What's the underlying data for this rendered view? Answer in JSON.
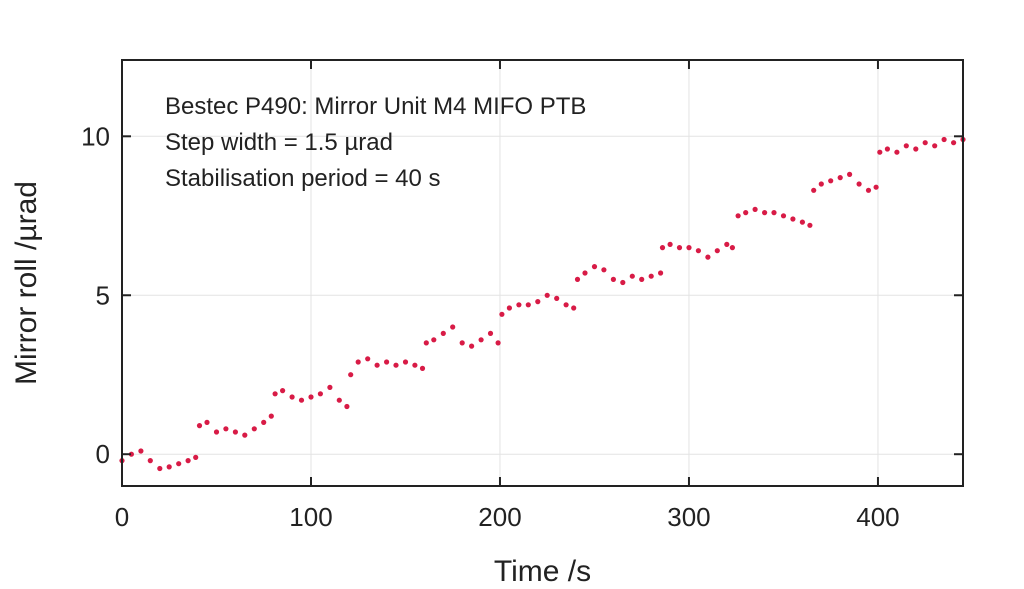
{
  "chart_data": {
    "type": "scatter",
    "title": "",
    "xlabel": "Time /s",
    "ylabel": "Mirror roll /µrad",
    "xlim": [
      0,
      445
    ],
    "ylim": [
      -1,
      12.4
    ],
    "x_ticks": [
      0,
      100,
      200,
      300,
      400
    ],
    "y_ticks": [
      0,
      5,
      10
    ],
    "grid": true,
    "marker_color": "#d81b46",
    "annotations": [
      "Bestec P490: Mirror Unit M4 MIFO PTB",
      "Step width = 1.5 µrad",
      "Stabilisation period = 40 s"
    ],
    "series": [
      {
        "x": [
          0,
          5,
          10,
          15,
          20,
          25,
          30,
          35,
          39,
          41,
          45,
          50,
          55,
          60,
          65,
          70,
          75,
          79,
          81,
          85,
          90,
          95,
          100,
          105,
          110,
          115,
          119,
          121,
          125,
          130,
          135,
          140,
          145,
          150,
          155,
          159,
          161,
          165,
          170,
          175,
          180,
          185,
          190,
          195,
          199,
          201,
          205,
          210,
          215,
          220,
          225,
          230,
          235,
          239,
          241,
          245,
          250,
          255,
          260,
          265,
          270,
          275,
          280,
          285,
          286,
          290,
          295,
          300,
          305,
          310,
          315,
          320,
          323,
          326,
          330,
          335,
          340,
          345,
          350,
          355,
          360,
          364,
          366,
          370,
          375,
          380,
          385,
          390,
          395,
          399,
          401,
          405,
          410,
          415,
          420,
          425,
          430,
          435,
          440,
          445
        ],
        "y": [
          -0.2,
          0.0,
          0.1,
          -0.2,
          -0.45,
          -0.4,
          -0.3,
          -0.2,
          -0.1,
          0.9,
          1.0,
          0.7,
          0.8,
          0.7,
          0.6,
          0.8,
          1.0,
          1.2,
          1.9,
          2.0,
          1.8,
          1.7,
          1.8,
          1.9,
          2.1,
          1.7,
          1.5,
          2.5,
          2.9,
          3.0,
          2.8,
          2.9,
          2.8,
          2.9,
          2.8,
          2.7,
          3.5,
          3.6,
          3.8,
          4.0,
          3.5,
          3.4,
          3.6,
          3.8,
          3.5,
          4.4,
          4.6,
          4.7,
          4.7,
          4.8,
          5.0,
          4.9,
          4.7,
          4.6,
          5.5,
          5.7,
          5.9,
          5.8,
          5.5,
          5.4,
          5.6,
          5.5,
          5.6,
          5.7,
          6.5,
          6.6,
          6.5,
          6.5,
          6.4,
          6.2,
          6.4,
          6.6,
          6.5,
          7.5,
          7.6,
          7.7,
          7.6,
          7.6,
          7.5,
          7.4,
          7.3,
          7.2,
          8.3,
          8.5,
          8.6,
          8.7,
          8.8,
          8.5,
          8.3,
          8.4,
          9.5,
          9.6,
          9.5,
          9.7,
          9.6,
          9.8,
          9.7,
          9.9,
          9.8,
          9.9
        ]
      }
    ]
  }
}
